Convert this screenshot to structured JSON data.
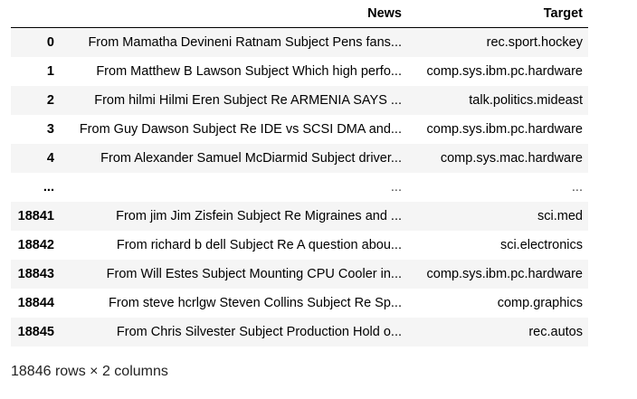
{
  "dataframe": {
    "columns": [
      "",
      "News",
      "Target"
    ],
    "rows": [
      {
        "index": "0",
        "news": "From Mamatha Devineni Ratnam Subject Pens fans...",
        "target": "rec.sport.hockey"
      },
      {
        "index": "1",
        "news": "From Matthew B Lawson Subject Which high perfo...",
        "target": "comp.sys.ibm.pc.hardware"
      },
      {
        "index": "2",
        "news": "From hilmi Hilmi Eren Subject Re ARMENIA SAYS ...",
        "target": "talk.politics.mideast"
      },
      {
        "index": "3",
        "news": "From Guy Dawson Subject Re IDE vs SCSI DMA and...",
        "target": "comp.sys.ibm.pc.hardware"
      },
      {
        "index": "4",
        "news": "From Alexander Samuel McDiarmid Subject driver...",
        "target": "comp.sys.mac.hardware"
      },
      {
        "index": "...",
        "news": "...",
        "target": "..."
      },
      {
        "index": "18841",
        "news": "From jim Jim Zisfein Subject Re Migraines and ...",
        "target": "sci.med"
      },
      {
        "index": "18842",
        "news": "From richard b dell Subject Re A question abou...",
        "target": "sci.electronics"
      },
      {
        "index": "18843",
        "news": "From Will Estes Subject Mounting CPU Cooler in...",
        "target": "comp.sys.ibm.pc.hardware"
      },
      {
        "index": "18844",
        "news": "From steve hcrlgw Steven Collins Subject Re Sp...",
        "target": "comp.graphics"
      },
      {
        "index": "18845",
        "news": "From Chris Silvester Subject Production Hold o...",
        "target": "rec.autos"
      }
    ],
    "summary": "18846 rows × 2 columns"
  }
}
